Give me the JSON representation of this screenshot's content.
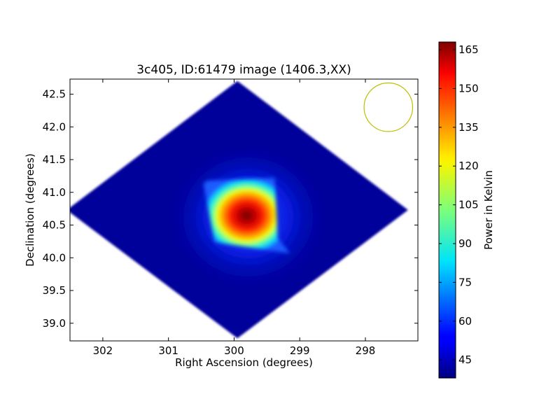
{
  "chart_data": {
    "type": "heatmap",
    "title": "3c405, ID:61479 image (1406.3,XX)",
    "xlabel": "Right Ascension (degrees)",
    "ylabel": "Declination (degrees)",
    "xlim": [
      302.5,
      297.2
    ],
    "ylim": [
      38.73,
      42.73
    ],
    "x_ticks": [
      {
        "value": 302,
        "label": "302"
      },
      {
        "value": 301,
        "label": "301"
      },
      {
        "value": 300,
        "label": "300"
      },
      {
        "value": 299,
        "label": "299"
      },
      {
        "value": 298,
        "label": "298"
      }
    ],
    "y_ticks": [
      {
        "value": 39.0,
        "label": "39.0"
      },
      {
        "value": 39.5,
        "label": "39.5"
      },
      {
        "value": 40.0,
        "label": "40.0"
      },
      {
        "value": 40.5,
        "label": "40.5"
      },
      {
        "value": 41.0,
        "label": "41.0"
      },
      {
        "value": 41.5,
        "label": "41.5"
      },
      {
        "value": 42.0,
        "label": "42.0"
      },
      {
        "value": 42.5,
        "label": "42.5"
      }
    ],
    "coverage_boundary": [
      {
        "ra": 299.95,
        "dec": 42.7
      },
      {
        "ra": 302.55,
        "dec": 40.73
      },
      {
        "ra": 299.95,
        "dec": 38.77
      },
      {
        "ra": 297.35,
        "dec": 40.73
      }
    ],
    "peak": {
      "ra": 299.85,
      "dec": 40.73,
      "value": 167
    },
    "background_value": 40,
    "beam_circle": {
      "ra": 297.65,
      "dec": 42.3,
      "radius_deg": 0.37,
      "color": "#bfbf00"
    },
    "colorbar": {
      "label": "Power in Kelvin",
      "min": 38,
      "max": 168,
      "colormap": "jet",
      "ticks": [
        {
          "value": 45,
          "label": "45"
        },
        {
          "value": 60,
          "label": "60"
        },
        {
          "value": 75,
          "label": "75"
        },
        {
          "value": 90,
          "label": "90"
        },
        {
          "value": 105,
          "label": "105"
        },
        {
          "value": 120,
          "label": "120"
        },
        {
          "value": 135,
          "label": "135"
        },
        {
          "value": 150,
          "label": "150"
        },
        {
          "value": 165,
          "label": "165"
        }
      ]
    }
  }
}
